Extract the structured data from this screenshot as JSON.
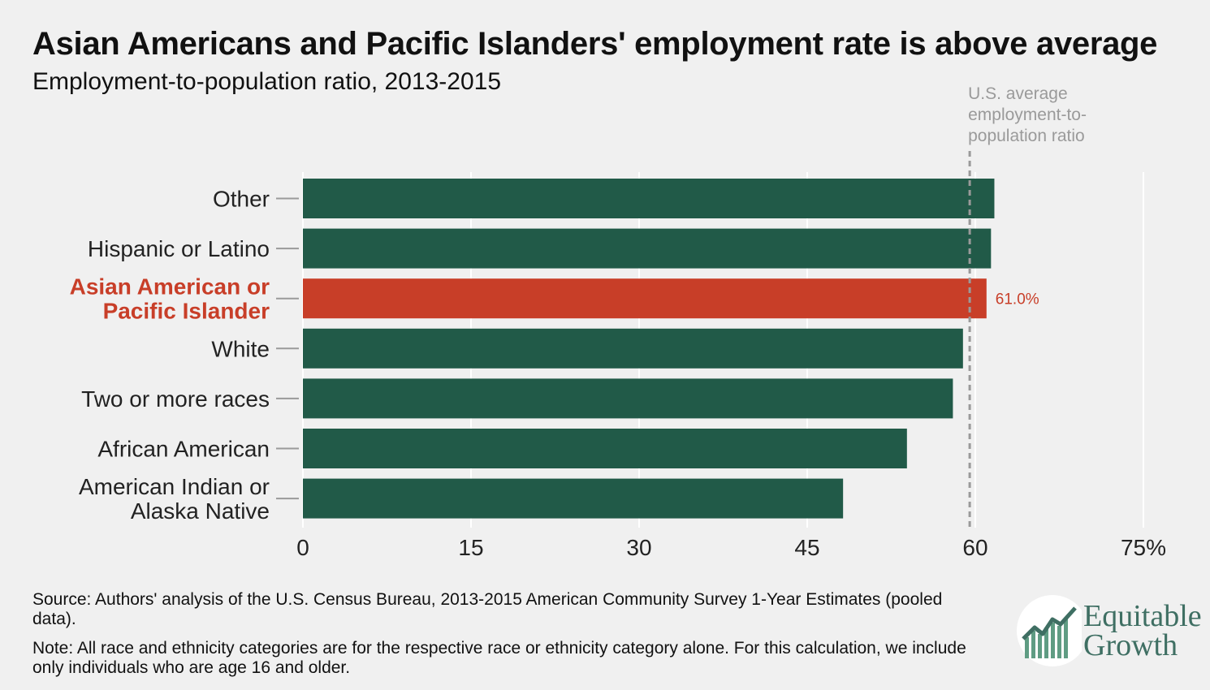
{
  "title": "Asian Americans and Pacific Islanders' employment rate is above average",
  "subtitle": "Employment-to-population ratio, 2013-2015",
  "source": "Source: Authors' analysis of the U.S. Census Bureau, 2013-2015 American Community Survey 1-Year Estimates (pooled data).",
  "note": "Note: All race and ethnicity categories are for the respective race or ethnicity category alone. For this calculation, we include only individuals who are age 16 and older.",
  "logo": {
    "line1": "Equitable",
    "line2": "Growth",
    "icon": "rising-line-chart-icon"
  },
  "colors": {
    "bar": "#215a48",
    "highlight": "#c83e28",
    "reference": "#9a9a9a",
    "background": "#f0f0f0"
  },
  "chart_data": {
    "type": "bar",
    "orientation": "horizontal",
    "categories": [
      [
        "Other"
      ],
      [
        "Hispanic or Latino"
      ],
      [
        "Asian American or",
        "Pacific Islander"
      ],
      [
        "White"
      ],
      [
        "Two or more races"
      ],
      [
        "African American"
      ],
      [
        "American Indian or",
        "Alaska Native"
      ]
    ],
    "values": [
      61.7,
      61.4,
      61.0,
      58.9,
      58.0,
      53.9,
      48.2
    ],
    "highlight_index": 2,
    "data_labels": [
      "",
      "",
      "61.0%",
      "",
      "",
      "",
      ""
    ],
    "xlim": [
      0,
      75
    ],
    "ticks": [
      0,
      15,
      30,
      45,
      60,
      75
    ],
    "tick_labels": [
      "0",
      "15",
      "30",
      "45",
      "60",
      "75%"
    ],
    "reference_line": {
      "value": 59.5,
      "label": [
        "U.S. average",
        "employment-to-",
        "population ratio"
      ]
    },
    "grid": true
  }
}
